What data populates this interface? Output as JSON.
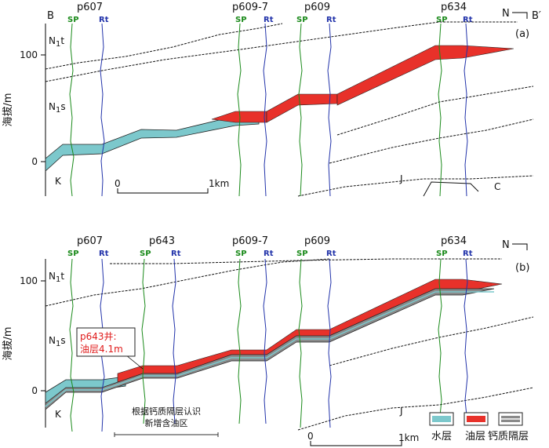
{
  "section_a": {
    "label_left": "B",
    "label_right": "B′",
    "north": "N",
    "panel": "(a)",
    "wells": [
      "p607",
      "p609-7",
      "p609",
      "p634"
    ],
    "formations": {
      "top": "N",
      "top_sub": "1",
      "top_suffix": "t",
      "mid": "N",
      "mid_sub": "1",
      "mid_suffix": "s",
      "base_left": "K",
      "base_mid": "J",
      "base_right": "C"
    },
    "ticks": [
      "100",
      "0"
    ],
    "scale": {
      "start": "0",
      "end": "1km"
    }
  },
  "section_b": {
    "north": "N",
    "panel": "(b)",
    "wells": [
      "p607",
      "p643",
      "p609-7",
      "p609",
      "p634"
    ],
    "formations": {
      "top": "N",
      "top_sub": "1",
      "top_suffix": "t",
      "mid": "N",
      "mid_sub": "1",
      "mid_suffix": "s",
      "base_left": "K",
      "base_mid": "J"
    },
    "ticks": [
      "100",
      "0"
    ],
    "scale": {
      "start": "0",
      "end": "1km"
    },
    "callout_line1": "p643井:",
    "callout_line2": "油层4.1m",
    "bracket_line1": "根据钙质隔层认识",
    "bracket_line2": "新增含油区"
  },
  "log_labels": {
    "sp": "SP",
    "rt": "Rt"
  },
  "ylabel": "海拔/m",
  "legend": {
    "water": "水层",
    "oil": "油层",
    "calc": "钙质隔层"
  },
  "colors": {
    "water": "#7cc8cc",
    "oil": "#e8312a",
    "calc": "#8a8a8a",
    "sp": "#1a8a1a",
    "rt": "#2233aa"
  }
}
